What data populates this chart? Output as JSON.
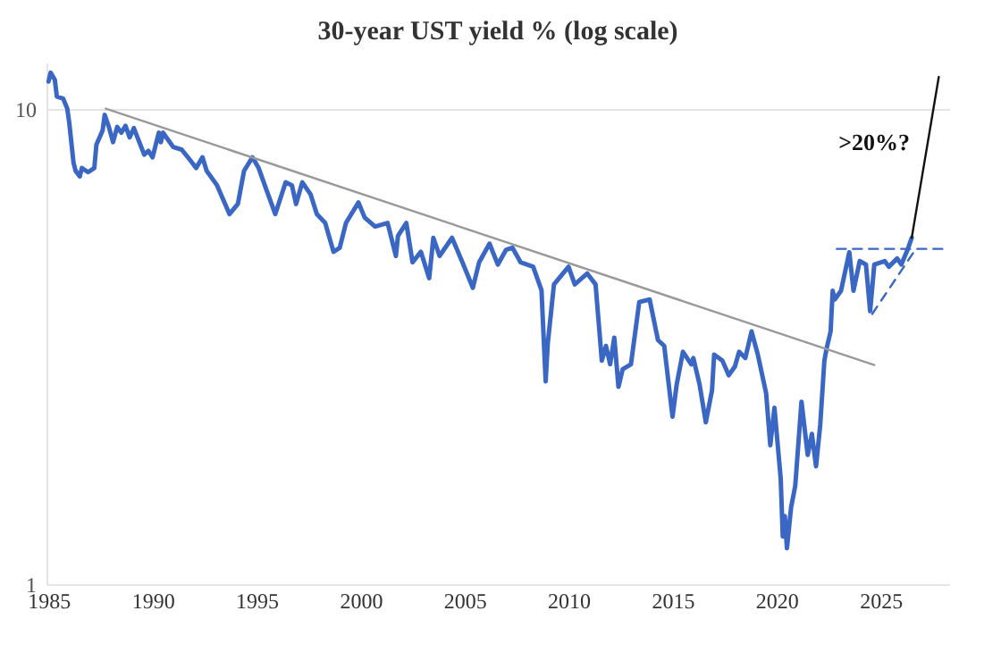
{
  "chart_data": {
    "type": "line",
    "title": "30-year UST yield % (log scale)",
    "log": "y",
    "grid": "y",
    "xlim": [
      1984.9,
      2028.3
    ],
    "ylim": [
      1,
      12.5
    ],
    "xticks": [
      1985,
      1990,
      1995,
      2000,
      2005,
      2010,
      2015,
      2020,
      2025
    ],
    "yticks": [
      1,
      10
    ],
    "annotations": [
      ">20%?"
    ],
    "series": [
      {
        "color": "#3a66c4",
        "x": [
          1985.0,
          1985.1,
          1985.3,
          1985.4,
          1985.7,
          1985.9,
          1986.0,
          1986.2,
          1986.3,
          1986.5,
          1986.6,
          1986.9,
          1987.2,
          1987.3,
          1987.6,
          1987.7,
          1987.9,
          1988.1,
          1988.3,
          1988.5,
          1988.7,
          1988.9,
          1989.1,
          1989.6,
          1989.8,
          1990.0,
          1990.3,
          1990.4,
          1990.5,
          1991.0,
          1991.4,
          1991.8,
          1992.1,
          1992.4,
          1992.6,
          1993.1,
          1993.7,
          1994.1,
          1994.4,
          1994.8,
          1995.1,
          1995.5,
          1995.9,
          1996.4,
          1996.7,
          1996.9,
          1997.2,
          1997.6,
          1997.9,
          1998.3,
          1998.7,
          1999.0,
          1999.3,
          1999.9,
          2000.2,
          2000.7,
          2001.3,
          2001.7,
          2001.8,
          2002.2,
          2002.5,
          2002.9,
          2003.3,
          2003.5,
          2003.8,
          2004.4,
          2004.9,
          2005.4,
          2005.7,
          2006.2,
          2006.6,
          2007.0,
          2007.3,
          2007.7,
          2008.3,
          2008.7,
          2008.9,
          2009.0,
          2009.3,
          2010.0,
          2010.3,
          2010.9,
          2011.3,
          2011.6,
          2011.8,
          2012.0,
          2012.2,
          2012.4,
          2012.6,
          2013.0,
          2013.4,
          2013.9,
          2014.3,
          2014.6,
          2015.0,
          2015.2,
          2015.5,
          2015.9,
          2016.0,
          2016.3,
          2016.6,
          2016.9,
          2017.0,
          2017.4,
          2017.7,
          2018.0,
          2018.2,
          2018.5,
          2018.8,
          2019.1,
          2019.5,
          2019.7,
          2019.9,
          2020.2,
          2020.3,
          2020.4,
          2020.5,
          2020.7,
          2020.9,
          2021.2,
          2021.5,
          2021.7,
          2021.9,
          2022.1,
          2022.3,
          2022.4,
          2022.6,
          2022.7,
          2022.8,
          2023.1,
          2023.5,
          2023.7,
          2024.0,
          2024.3,
          2024.5,
          2024.7,
          2025.2,
          2025.4,
          2025.8,
          2026.0,
          2026.3,
          2026.5
        ],
        "values": [
          11.4,
          11.9,
          11.5,
          10.6,
          10.5,
          10.0,
          9.3,
          7.7,
          7.4,
          7.2,
          7.5,
          7.35,
          7.5,
          8.4,
          9.0,
          9.7,
          9.15,
          8.5,
          9.15,
          8.9,
          9.2,
          8.7,
          9.1,
          8.0,
          8.15,
          7.9,
          8.9,
          8.5,
          8.9,
          8.3,
          8.2,
          7.8,
          7.5,
          7.9,
          7.4,
          6.9,
          6.0,
          6.3,
          7.4,
          7.9,
          7.5,
          6.7,
          6.0,
          7.0,
          6.9,
          6.3,
          7.0,
          6.6,
          6.0,
          5.75,
          5.0,
          5.1,
          5.75,
          6.35,
          5.9,
          5.65,
          5.75,
          4.9,
          5.4,
          5.75,
          4.75,
          5.0,
          4.4,
          5.35,
          4.9,
          5.35,
          4.75,
          4.2,
          4.75,
          5.2,
          4.7,
          5.05,
          5.1,
          4.75,
          4.65,
          4.15,
          2.67,
          3.2,
          4.27,
          4.65,
          4.27,
          4.5,
          4.27,
          2.95,
          3.17,
          2.9,
          3.3,
          2.6,
          2.83,
          2.9,
          3.92,
          3.97,
          3.26,
          3.17,
          2.25,
          2.63,
          3.08,
          2.9,
          2.99,
          2.63,
          2.19,
          2.56,
          3.04,
          2.95,
          2.75,
          2.87,
          3.08,
          2.99,
          3.4,
          3.04,
          2.52,
          1.96,
          2.35,
          1.67,
          1.26,
          1.39,
          1.19,
          1.45,
          1.61,
          2.42,
          1.87,
          2.07,
          1.77,
          2.16,
          2.95,
          3.12,
          3.4,
          4.14,
          3.97,
          4.14,
          4.99,
          4.14,
          4.78,
          4.7,
          3.75,
          4.7,
          4.78,
          4.65,
          4.84,
          4.7,
          5.05,
          5.35
        ]
      },
      {
        "color": "#999999",
        "x": [
          1987.75,
          2024.7
        ],
        "values": [
          10.0,
          2.89
        ]
      },
      {
        "color": "#3a66c4",
        "line_style": "dashed",
        "x": [
          2022.9,
          2028.1
        ],
        "values": [
          5.07,
          5.07
        ]
      },
      {
        "color": "#3a66c4",
        "line_style": "dashed",
        "x": [
          2024.6,
          2026.7
        ],
        "values": [
          3.7,
          5.07
        ]
      },
      {
        "color": "#111111",
        "x": [
          2026.5,
          2027.8
        ],
        "values": [
          5.35,
          11.65
        ]
      }
    ]
  }
}
